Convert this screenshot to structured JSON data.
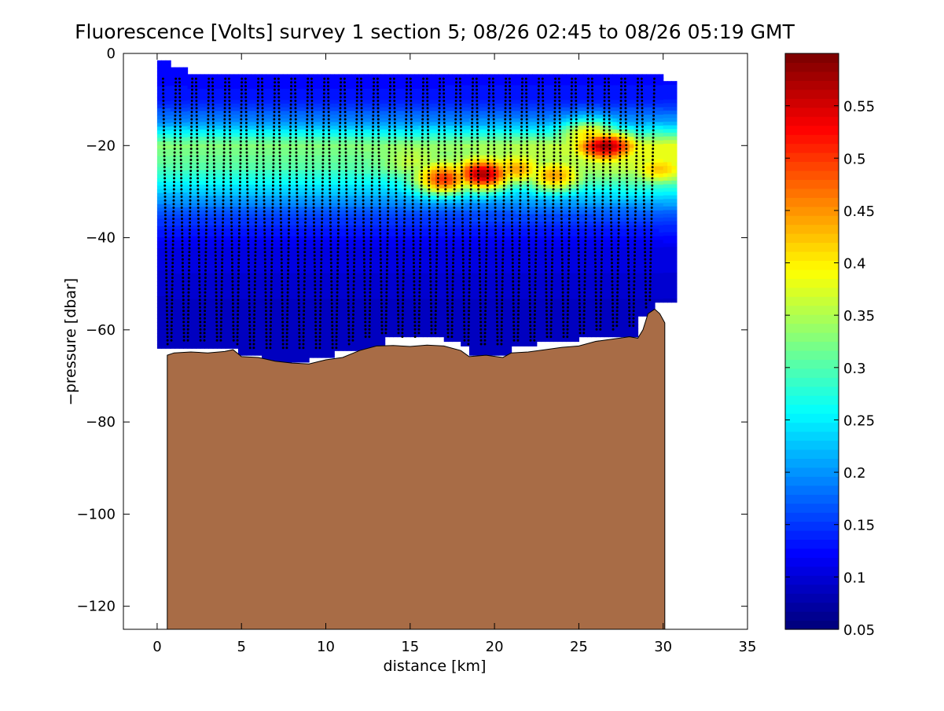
{
  "chart_data": {
    "type": "heatmap",
    "title": "Fluorescence [Volts] survey 1 section 5; 08/26 02:45 to 08/26 05:19 GMT",
    "xlabel": "distance [km]",
    "ylabel": "−pressure [dbar]",
    "xlim": [
      -2,
      35
    ],
    "ylim": [
      -125,
      0
    ],
    "x_ticks": [
      "0",
      "5",
      "10",
      "15",
      "20",
      "25",
      "30",
      "35"
    ],
    "y_ticks": [
      "0",
      "−20",
      "−40",
      "−60",
      "−80",
      "−100",
      "−120"
    ],
    "colorbar": {
      "range": [
        0.05,
        0.6
      ],
      "ticks": [
        "0.05",
        "0.1",
        "0.15",
        "0.2",
        "0.25",
        "0.3",
        "0.35",
        "0.4",
        "0.45",
        "0.5",
        "0.55"
      ],
      "colormap": "jet",
      "levels": 64
    },
    "sections": [
      {
        "x0": 0.0,
        "x1": 0.8,
        "top": -1.5,
        "bottom": -64
      },
      {
        "x0": 0.8,
        "x1": 1.8,
        "top": -3,
        "bottom": -64
      },
      {
        "x0": 1.8,
        "x1": 4.8,
        "top": -4.5,
        "bottom": -64
      },
      {
        "x0": 4.8,
        "x1": 6.2,
        "top": -4.5,
        "bottom": -65.5
      },
      {
        "x0": 6.2,
        "x1": 9.0,
        "top": -4.5,
        "bottom": -67
      },
      {
        "x0": 9.0,
        "x1": 10.5,
        "top": -4.5,
        "bottom": -66
      },
      {
        "x0": 10.5,
        "x1": 13.5,
        "top": -4.5,
        "bottom": -64.5
      },
      {
        "x0": 13.5,
        "x1": 17.0,
        "top": -4.5,
        "bottom": -61.5
      },
      {
        "x0": 17.0,
        "x1": 18.0,
        "top": -4.5,
        "bottom": -62.5
      },
      {
        "x0": 18.0,
        "x1": 18.5,
        "top": -4.5,
        "bottom": -63.5
      },
      {
        "x0": 18.5,
        "x1": 21.0,
        "top": -4.5,
        "bottom": -65.5
      },
      {
        "x0": 21.0,
        "x1": 22.5,
        "top": -4.5,
        "bottom": -63.5
      },
      {
        "x0": 22.5,
        "x1": 25.0,
        "top": -4.5,
        "bottom": -62.5
      },
      {
        "x0": 25.0,
        "x1": 28.5,
        "top": -4.5,
        "bottom": -61.5
      },
      {
        "x0": 28.5,
        "x1": 29.5,
        "top": -4.5,
        "bottom": -57
      },
      {
        "x0": 29.5,
        "x1": 30.0,
        "top": -4.5,
        "bottom": -54
      },
      {
        "x0": 30.0,
        "x1": 30.8,
        "top": -6,
        "bottom": -54
      }
    ],
    "background_fluorescence": [
      {
        "depth": 0,
        "value": 0.12
      },
      {
        "depth": -10,
        "value": 0.13
      },
      {
        "depth": -15,
        "value": 0.2
      },
      {
        "depth": -20,
        "value": 0.33
      },
      {
        "depth": -25,
        "value": 0.3
      },
      {
        "depth": -30,
        "value": 0.23
      },
      {
        "depth": -35,
        "value": 0.16
      },
      {
        "depth": -42,
        "value": 0.11
      },
      {
        "depth": -55,
        "value": 0.09
      },
      {
        "depth": -70,
        "value": 0.09
      }
    ],
    "east_boost": {
      "from_km": 14,
      "to_km": 30,
      "amount": 0.07
    },
    "fluorescence_maxima": [
      {
        "x": 19.3,
        "depth": -26.5,
        "value": 0.57
      },
      {
        "x": 17.0,
        "depth": -27.5,
        "value": 0.5
      },
      {
        "x": 21.3,
        "depth": -25.5,
        "value": 0.44
      },
      {
        "x": 23.6,
        "depth": -27.0,
        "value": 0.44
      },
      {
        "x": 26.6,
        "depth": -20.0,
        "value": 0.58
      },
      {
        "x": 25.6,
        "depth": -17.0,
        "value": 0.4
      },
      {
        "x": 29.8,
        "depth": -25.5,
        "value": 0.42
      },
      {
        "x": 15.2,
        "depth": -24.0,
        "value": 0.36
      }
    ],
    "profile_count": 60,
    "profile_depth_step": 0.8,
    "bottom_profile": [
      {
        "x": 0.6,
        "y": -65.5
      },
      {
        "x": 1.0,
        "y": -65.0
      },
      {
        "x": 2.0,
        "y": -64.8
      },
      {
        "x": 3.0,
        "y": -65.0
      },
      {
        "x": 4.0,
        "y": -64.7
      },
      {
        "x": 4.5,
        "y": -64.3
      },
      {
        "x": 5.0,
        "y": -65.8
      },
      {
        "x": 6.0,
        "y": -66.0
      },
      {
        "x": 7.0,
        "y": -66.8
      },
      {
        "x": 8.0,
        "y": -67.2
      },
      {
        "x": 9.0,
        "y": -67.4
      },
      {
        "x": 10.0,
        "y": -66.5
      },
      {
        "x": 11.0,
        "y": -66.0
      },
      {
        "x": 12.0,
        "y": -64.5
      },
      {
        "x": 13.0,
        "y": -63.5
      },
      {
        "x": 14.0,
        "y": -63.4
      },
      {
        "x": 15.0,
        "y": -63.6
      },
      {
        "x": 16.0,
        "y": -63.3
      },
      {
        "x": 17.0,
        "y": -63.5
      },
      {
        "x": 18.0,
        "y": -64.5
      },
      {
        "x": 18.5,
        "y": -65.8
      },
      {
        "x": 19.5,
        "y": -65.5
      },
      {
        "x": 20.5,
        "y": -66.0
      },
      {
        "x": 21.0,
        "y": -65.0
      },
      {
        "x": 22.0,
        "y": -64.8
      },
      {
        "x": 23.0,
        "y": -64.3
      },
      {
        "x": 24.0,
        "y": -63.8
      },
      {
        "x": 25.0,
        "y": -63.5
      },
      {
        "x": 26.0,
        "y": -62.5
      },
      {
        "x": 27.0,
        "y": -62.0
      },
      {
        "x": 28.0,
        "y": -61.5
      },
      {
        "x": 28.5,
        "y": -61.8
      },
      {
        "x": 28.8,
        "y": -60.0
      },
      {
        "x": 29.1,
        "y": -56.5
      },
      {
        "x": 29.5,
        "y": -55.5
      },
      {
        "x": 29.8,
        "y": -56.5
      },
      {
        "x": 30.1,
        "y": -58.5
      },
      {
        "x": 30.1,
        "y": -125.0
      },
      {
        "x": 0.6,
        "y": -125.0
      }
    ],
    "colors": {
      "seafloor_fill": "#a86c46",
      "profile_marker": "#000000",
      "axes_border": "#000000",
      "background": "#ffffff"
    }
  }
}
